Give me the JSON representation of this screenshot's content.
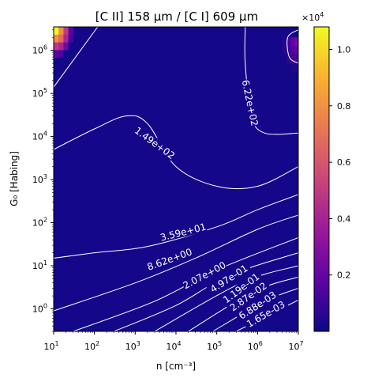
{
  "chart_data": {
    "type": "heatmap",
    "title": "[C II] 158 μm / [C I] 609 μm",
    "xlabel": "n [cm⁻³]",
    "ylabel": "G₀ [Habing]",
    "x_scale": "log",
    "y_scale": "log",
    "xlim": [
      10,
      10000000
    ],
    "ylim": [
      0.3,
      3500000
    ],
    "x_ticks": [
      {
        "value": 10,
        "base": "10",
        "exp": "1"
      },
      {
        "value": 100,
        "base": "10",
        "exp": "2"
      },
      {
        "value": 1000,
        "base": "10",
        "exp": "3"
      },
      {
        "value": 10000,
        "base": "10",
        "exp": "4"
      },
      {
        "value": 100000,
        "base": "10",
        "exp": "5"
      },
      {
        "value": 1000000,
        "base": "10",
        "exp": "6"
      },
      {
        "value": 10000000,
        "base": "10",
        "exp": "7"
      }
    ],
    "y_ticks": [
      {
        "value": 1,
        "base": "10",
        "exp": "0"
      },
      {
        "value": 10,
        "base": "10",
        "exp": "1"
      },
      {
        "value": 100,
        "base": "10",
        "exp": "2"
      },
      {
        "value": 1000,
        "base": "10",
        "exp": "3"
      },
      {
        "value": 10000,
        "base": "10",
        "exp": "4"
      },
      {
        "value": 100000,
        "base": "10",
        "exp": "5"
      },
      {
        "value": 1000000,
        "base": "10",
        "exp": "6"
      }
    ],
    "colormap": "plasma",
    "colormap_stops": [
      "#0d0887",
      "#5b02a3",
      "#9a179b",
      "#cb4678",
      "#eb7852",
      "#fbb32f",
      "#f0f921"
    ],
    "colorbar": {
      "min": 0,
      "max": 10800,
      "ticks": [
        {
          "value": 2000,
          "label": "0.2"
        },
        {
          "value": 4000,
          "label": "0.4"
        },
        {
          "value": 6000,
          "label": "0.6"
        },
        {
          "value": 8000,
          "label": "0.8"
        },
        {
          "value": 10000,
          "label": "1.0"
        }
      ],
      "offset_base": "×10",
      "offset_exp": "4"
    },
    "hotspots": [
      {
        "x": 10,
        "y": 3500000,
        "value": 10800,
        "dx": 0.6,
        "dy": 0.9
      },
      {
        "x": 10000000,
        "y": 2000000,
        "value": 2500,
        "dx": 0.5,
        "dy": 1.0
      }
    ],
    "contours": [
      {
        "label": "1.65e-03",
        "level": 0.00165,
        "label_at": [
          1600000,
          0.75
        ],
        "label_angle": -30,
        "points": [
          [
            300000,
            0.3
          ],
          [
            3000000,
            0.9
          ],
          [
            10000000,
            1.6
          ]
        ]
      },
      {
        "label": "6.88e-03",
        "level": 0.00688,
        "label_at": [
          1000000,
          1.2
        ],
        "label_angle": -33,
        "points": [
          [
            80000,
            0.3
          ],
          [
            1500000,
            1.5
          ],
          [
            10000000,
            3
          ]
        ]
      },
      {
        "label": "2.87e-02",
        "level": 0.0287,
        "label_at": [
          600000,
          1.9
        ],
        "label_angle": -35,
        "points": [
          [
            20000,
            0.3
          ],
          [
            800000,
            2.5
          ],
          [
            10000000,
            5.5
          ]
        ]
      },
      {
        "label": "1.19e-01",
        "level": 0.119,
        "label_at": [
          400000,
          3
        ],
        "label_angle": -37,
        "points": [
          [
            3000,
            0.3
          ],
          [
            400000,
            4
          ],
          [
            10000000,
            10
          ]
        ]
      },
      {
        "label": "4.97e-01",
        "level": 0.497,
        "label_at": [
          200000,
          5
        ],
        "label_angle": -33,
        "points": [
          [
            300,
            0.3
          ],
          [
            10000,
            1.2
          ],
          [
            200000,
            6
          ],
          [
            10000000,
            20
          ]
        ]
      },
      {
        "label": "2.07e+00",
        "level": 2.07,
        "label_at": [
          50000,
          6
        ],
        "label_angle": -28,
        "points": [
          [
            30,
            0.3
          ],
          [
            3000,
            1.5
          ],
          [
            100000,
            8
          ],
          [
            10000000,
            45
          ]
        ]
      },
      {
        "label": "8.62e+00",
        "level": 8.62,
        "label_at": [
          7000,
          14
        ],
        "label_angle": -20,
        "points": [
          [
            10,
            0.9
          ],
          [
            1000,
            4
          ],
          [
            30000,
            15
          ],
          [
            1000000,
            70
          ],
          [
            10000000,
            150
          ]
        ]
      },
      {
        "label": "3.59e+01",
        "level": 35.9,
        "label_at": [
          15000,
          60
        ],
        "label_angle": -14,
        "points": [
          [
            10,
            15
          ],
          [
            100,
            20
          ],
          [
            2000,
            28
          ],
          [
            100000,
            80
          ],
          [
            1000000,
            200
          ],
          [
            10000000,
            450
          ]
        ]
      },
      {
        "label": "1.49e+02",
        "level": 149,
        "label_at": [
          3000,
          7000
        ],
        "label_angle": 36,
        "points": [
          [
            10,
            5000
          ],
          [
            100,
            15000
          ],
          [
            600,
            30000
          ],
          [
            2000,
            20000
          ],
          [
            10000,
            2000
          ],
          [
            100000,
            700
          ],
          [
            1000000,
            700
          ],
          [
            10000000,
            2000
          ]
        ]
      },
      {
        "label": "6.22e+02",
        "level": 622,
        "label_at": [
          650000,
          60000
        ],
        "label_angle": 78,
        "points": [
          [
            500000,
            3500000
          ],
          [
            500000,
            500000
          ],
          [
            700000,
            30000
          ],
          [
            1500000,
            12000
          ],
          [
            10000000,
            12000
          ]
        ]
      },
      {
        "label": "",
        "level": 2500,
        "label_at": null,
        "label_angle": 0,
        "points": [
          [
            120,
            3500000
          ],
          [
            10,
            140000
          ]
        ]
      },
      {
        "label": "",
        "level": 2500,
        "label_at": null,
        "label_angle": 0,
        "points": [
          [
            10000000,
            3000000
          ],
          [
            5500000,
            2000000
          ],
          [
            6000000,
            700000
          ],
          [
            10000000,
            500000
          ]
        ]
      }
    ]
  }
}
